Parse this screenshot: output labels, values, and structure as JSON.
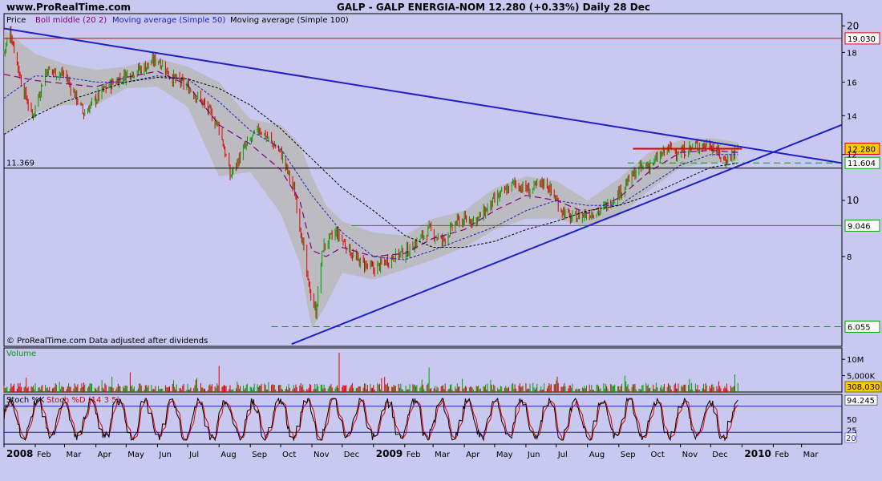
{
  "header": {
    "site": "www.ProRealTime.com",
    "title": "GALP - GALP ENERGIA-NOM   12.280 (+0.33%)   Daily  28 Dec"
  },
  "footer_note": "© ProRealTime.com  Data adjusted after dividends",
  "colors": {
    "background": "#c8c8f0",
    "panel_border": "#000000",
    "bollinger_band": "#b8b8b8",
    "ma50": "#2020c0",
    "ma100": "#000000",
    "boll_middle": "#800080",
    "trendline": "#2020c0",
    "resistance": "#e00000",
    "support": "#00a000",
    "up_candle": "#00a000",
    "down_candle": "#e00000"
  },
  "chart_data": [
    {
      "type": "line",
      "panel": "price",
      "legend": [
        "Price",
        "Boll middle (20 2)",
        "Moving average (Simple 50)",
        "Moving average (Simple 100)"
      ],
      "y_scale": "log",
      "ylim": [
        5.6,
        21
      ],
      "y_ticks": [
        "20",
        "18",
        "16",
        "14",
        "12",
        "10",
        "8"
      ],
      "x_ticks": [
        "2008",
        "Feb",
        "Mar",
        "Apr",
        "May",
        "Jun",
        "Jul",
        "Aug",
        "Sep",
        "Oct",
        "Nov",
        "Dec",
        "2009",
        "Feb",
        "Mar",
        "Apr",
        "May",
        "Jun",
        "Jul",
        "Aug",
        "Sep",
        "Oct",
        "Nov",
        "Dec",
        "2010",
        "Feb",
        "Mar"
      ],
      "x_ticks_bold": [
        "2008",
        "2009",
        "2010"
      ],
      "price_path": [
        {
          "x": "2008-01-01",
          "y": 18.0
        },
        {
          "x": "2008-01-07",
          "y": 19.6
        },
        {
          "x": "2008-01-18",
          "y": 16.0
        },
        {
          "x": "2008-01-29",
          "y": 13.9
        },
        {
          "x": "2008-02-12",
          "y": 16.8
        },
        {
          "x": "2008-03-01",
          "y": 16.5
        },
        {
          "x": "2008-03-20",
          "y": 14.1
        },
        {
          "x": "2008-04-10",
          "y": 15.6
        },
        {
          "x": "2008-05-01",
          "y": 16.5
        },
        {
          "x": "2008-05-20",
          "y": 17.0
        },
        {
          "x": "2008-06-01",
          "y": 17.6
        },
        {
          "x": "2008-06-15",
          "y": 16.3
        },
        {
          "x": "2008-07-01",
          "y": 15.7
        },
        {
          "x": "2008-07-15",
          "y": 14.8
        },
        {
          "x": "2008-08-01",
          "y": 13.4
        },
        {
          "x": "2008-08-12",
          "y": 11.0
        },
        {
          "x": "2008-08-25",
          "y": 12.2
        },
        {
          "x": "2008-09-10",
          "y": 13.3
        },
        {
          "x": "2008-09-20",
          "y": 12.7
        },
        {
          "x": "2008-10-01",
          "y": 12.1
        },
        {
          "x": "2008-10-15",
          "y": 10.3
        },
        {
          "x": "2008-10-28",
          "y": 7.2
        },
        {
          "x": "2008-11-05",
          "y": 6.4
        },
        {
          "x": "2008-11-12",
          "y": 8.3
        },
        {
          "x": "2008-11-25",
          "y": 8.8
        },
        {
          "x": "2008-12-15",
          "y": 7.9
        },
        {
          "x": "2009-01-01",
          "y": 7.6
        },
        {
          "x": "2009-01-20",
          "y": 8.0
        },
        {
          "x": "2009-02-05",
          "y": 8.2
        },
        {
          "x": "2009-02-25",
          "y": 8.9
        },
        {
          "x": "2009-03-10",
          "y": 8.5
        },
        {
          "x": "2009-03-25",
          "y": 9.2
        },
        {
          "x": "2009-04-15",
          "y": 9.3
        },
        {
          "x": "2009-05-01",
          "y": 10.0
        },
        {
          "x": "2009-05-20",
          "y": 10.7
        },
        {
          "x": "2009-06-05",
          "y": 10.4
        },
        {
          "x": "2009-06-20",
          "y": 10.8
        },
        {
          "x": "2009-07-05",
          "y": 9.7
        },
        {
          "x": "2009-07-15",
          "y": 9.3
        },
        {
          "x": "2009-08-01",
          "y": 9.5
        },
        {
          "x": "2009-08-15",
          "y": 9.6
        },
        {
          "x": "2009-09-01",
          "y": 10.3
        },
        {
          "x": "2009-09-20",
          "y": 11.3
        },
        {
          "x": "2009-10-05",
          "y": 11.6
        },
        {
          "x": "2009-10-20",
          "y": 12.3
        },
        {
          "x": "2009-11-01",
          "y": 12.1
        },
        {
          "x": "2009-11-15",
          "y": 12.4
        },
        {
          "x": "2009-12-01",
          "y": 12.5
        },
        {
          "x": "2009-12-15",
          "y": 11.7
        },
        {
          "x": "2009-12-28",
          "y": 12.28
        }
      ],
      "bollinger": [
        {
          "x": "2008-01-01",
          "upper": 19.7,
          "lower": 13.0
        },
        {
          "x": "2008-02-01",
          "upper": 17.9,
          "lower": 14.2
        },
        {
          "x": "2008-03-01",
          "upper": 17.2,
          "lower": 14.6
        },
        {
          "x": "2008-04-01",
          "upper": 16.8,
          "lower": 14.6
        },
        {
          "x": "2008-05-01",
          "upper": 17.0,
          "lower": 15.6
        },
        {
          "x": "2008-06-01",
          "upper": 17.6,
          "lower": 15.7
        },
        {
          "x": "2008-07-01",
          "upper": 17.0,
          "lower": 14.5
        },
        {
          "x": "2008-08-01",
          "upper": 16.0,
          "lower": 11.0
        },
        {
          "x": "2008-09-01",
          "upper": 13.8,
          "lower": 11.2
        },
        {
          "x": "2008-10-01",
          "upper": 13.5,
          "lower": 9.5
        },
        {
          "x": "2008-10-20",
          "upper": 12.5,
          "lower": 7.8
        },
        {
          "x": "2008-11-01",
          "upper": 11.0,
          "lower": 6.0
        },
        {
          "x": "2008-11-15",
          "upper": 9.8,
          "lower": 6.6
        },
        {
          "x": "2008-12-01",
          "upper": 9.2,
          "lower": 7.5
        },
        {
          "x": "2009-01-01",
          "upper": 8.8,
          "lower": 7.3
        },
        {
          "x": "2009-02-01",
          "upper": 8.7,
          "lower": 7.6
        },
        {
          "x": "2009-03-01",
          "upper": 9.3,
          "lower": 7.9
        },
        {
          "x": "2009-04-01",
          "upper": 9.6,
          "lower": 8.3
        },
        {
          "x": "2009-05-01",
          "upper": 10.5,
          "lower": 8.9
        },
        {
          "x": "2009-06-01",
          "upper": 11.0,
          "lower": 9.3
        },
        {
          "x": "2009-07-01",
          "upper": 10.8,
          "lower": 9.3
        },
        {
          "x": "2009-08-01",
          "upper": 10.0,
          "lower": 9.0
        },
        {
          "x": "2009-09-01",
          "upper": 10.9,
          "lower": 9.4
        },
        {
          "x": "2009-10-01",
          "upper": 12.1,
          "lower": 10.4
        },
        {
          "x": "2009-11-01",
          "upper": 12.7,
          "lower": 11.4
        },
        {
          "x": "2009-12-01",
          "upper": 12.8,
          "lower": 11.6
        },
        {
          "x": "2009-12-28",
          "upper": 12.6,
          "lower": 11.7
        }
      ],
      "boll_middle": [
        {
          "x": "2008-01-01",
          "y": 16.5
        },
        {
          "x": "2008-02-01",
          "y": 16.1
        },
        {
          "x": "2008-03-01",
          "y": 15.9
        },
        {
          "x": "2008-04-01",
          "y": 15.7
        },
        {
          "x": "2008-05-01",
          "y": 16.3
        },
        {
          "x": "2008-06-01",
          "y": 16.7
        },
        {
          "x": "2008-07-01",
          "y": 15.8
        },
        {
          "x": "2008-08-01",
          "y": 13.5
        },
        {
          "x": "2008-09-01",
          "y": 12.5
        },
        {
          "x": "2008-10-01",
          "y": 11.3
        },
        {
          "x": "2008-10-20",
          "y": 10.0
        },
        {
          "x": "2008-11-01",
          "y": 8.2
        },
        {
          "x": "2008-11-15",
          "y": 8.0
        },
        {
          "x": "2008-12-01",
          "y": 8.3
        },
        {
          "x": "2009-01-01",
          "y": 8.0
        },
        {
          "x": "2009-02-01",
          "y": 8.1
        },
        {
          "x": "2009-03-01",
          "y": 8.6
        },
        {
          "x": "2009-04-01",
          "y": 8.9
        },
        {
          "x": "2009-05-01",
          "y": 9.6
        },
        {
          "x": "2009-06-01",
          "y": 10.2
        },
        {
          "x": "2009-07-01",
          "y": 10.0
        },
        {
          "x": "2009-08-01",
          "y": 9.5
        },
        {
          "x": "2009-09-01",
          "y": 10.1
        },
        {
          "x": "2009-10-01",
          "y": 11.2
        },
        {
          "x": "2009-11-01",
          "y": 12.1
        },
        {
          "x": "2009-12-01",
          "y": 12.2
        },
        {
          "x": "2009-12-28",
          "y": 12.1
        }
      ],
      "ma50": [
        {
          "x": "2008-01-01",
          "y": 15.0
        },
        {
          "x": "2008-02-01",
          "y": 16.4
        },
        {
          "x": "2008-03-01",
          "y": 16.3
        },
        {
          "x": "2008-04-01",
          "y": 16.0
        },
        {
          "x": "2008-05-01",
          "y": 16.0
        },
        {
          "x": "2008-06-01",
          "y": 16.4
        },
        {
          "x": "2008-07-01",
          "y": 16.2
        },
        {
          "x": "2008-08-01",
          "y": 14.8
        },
        {
          "x": "2008-09-01",
          "y": 13.2
        },
        {
          "x": "2008-10-01",
          "y": 12.3
        },
        {
          "x": "2008-11-01",
          "y": 10.2
        },
        {
          "x": "2008-12-01",
          "y": 8.8
        },
        {
          "x": "2009-01-01",
          "y": 8.0
        },
        {
          "x": "2009-02-01",
          "y": 7.9
        },
        {
          "x": "2009-03-01",
          "y": 8.2
        },
        {
          "x": "2009-04-01",
          "y": 8.6
        },
        {
          "x": "2009-05-01",
          "y": 9.0
        },
        {
          "x": "2009-06-01",
          "y": 9.6
        },
        {
          "x": "2009-07-01",
          "y": 10.0
        },
        {
          "x": "2009-08-01",
          "y": 9.8
        },
        {
          "x": "2009-09-01",
          "y": 9.8
        },
        {
          "x": "2009-10-01",
          "y": 10.6
        },
        {
          "x": "2009-11-01",
          "y": 11.5
        },
        {
          "x": "2009-12-01",
          "y": 12.0
        },
        {
          "x": "2009-12-28",
          "y": 12.0
        }
      ],
      "ma100": [
        {
          "x": "2008-01-01",
          "y": 13.0
        },
        {
          "x": "2008-02-01",
          "y": 14.0
        },
        {
          "x": "2008-03-01",
          "y": 14.8
        },
        {
          "x": "2008-04-01",
          "y": 15.4
        },
        {
          "x": "2008-05-01",
          "y": 16.0
        },
        {
          "x": "2008-06-01",
          "y": 16.3
        },
        {
          "x": "2008-07-01",
          "y": 16.2
        },
        {
          "x": "2008-08-01",
          "y": 15.6
        },
        {
          "x": "2008-09-01",
          "y": 14.6
        },
        {
          "x": "2008-10-01",
          "y": 13.3
        },
        {
          "x": "2008-11-01",
          "y": 11.8
        },
        {
          "x": "2008-12-01",
          "y": 10.5
        },
        {
          "x": "2009-01-01",
          "y": 9.6
        },
        {
          "x": "2009-02-01",
          "y": 8.7
        },
        {
          "x": "2009-03-01",
          "y": 8.3
        },
        {
          "x": "2009-04-01",
          "y": 8.3
        },
        {
          "x": "2009-05-01",
          "y": 8.5
        },
        {
          "x": "2009-06-01",
          "y": 8.9
        },
        {
          "x": "2009-07-01",
          "y": 9.2
        },
        {
          "x": "2009-08-01",
          "y": 9.6
        },
        {
          "x": "2009-09-01",
          "y": 9.8
        },
        {
          "x": "2009-10-01",
          "y": 10.2
        },
        {
          "x": "2009-11-01",
          "y": 10.8
        },
        {
          "x": "2009-12-01",
          "y": 11.4
        },
        {
          "x": "2009-12-28",
          "y": 11.6
        }
      ],
      "trendlines": [
        {
          "name": "descending",
          "from": {
            "x": "2008-01-01",
            "y": 19.8
          },
          "to": {
            "x": "2010-04-10",
            "y": 11.6
          }
        },
        {
          "name": "ascending",
          "from": {
            "x": "2008-10-12",
            "y": 5.65
          },
          "to": {
            "x": "2010-04-10",
            "y": 13.5
          }
        }
      ],
      "levels": [
        {
          "value": 19.03,
          "label": "19.030",
          "color": "#e00000",
          "style": "solid",
          "from": "2008-01-01",
          "to": "2010-04-10",
          "boxed": true
        },
        {
          "value": 12.28,
          "label": "12.280",
          "color": "#e00000",
          "style": "solid-thick",
          "from": "2009-09-15",
          "to": "2010-01-01",
          "boxed": true,
          "fill": "#ffcc00"
        },
        {
          "value": 11.604,
          "label": "11.604",
          "color": "#00a000",
          "style": "dashed",
          "from": "2009-09-10",
          "to": "2010-04-10",
          "boxed": true
        },
        {
          "value": 11.369,
          "label": "11.369",
          "color": "#000000",
          "style": "solid",
          "from": "2008-01-01",
          "to": "2010-04-10",
          "label_side": "left"
        },
        {
          "value": 9.046,
          "label": "9.046",
          "color": "#00a000",
          "style": "solid",
          "from": "2008-12-10",
          "to": "2010-04-10",
          "boxed": true
        },
        {
          "value": 6.055,
          "label": "6.055",
          "color": "#00a000",
          "style": "dashed",
          "from": "2008-09-22",
          "to": "2010-04-10",
          "boxed": true
        }
      ]
    },
    {
      "type": "bar",
      "panel": "volume",
      "legend": [
        "Volume"
      ],
      "y_ticks": [
        "10M",
        "5,000K"
      ],
      "last_value": "308,030",
      "peaks": [
        {
          "x": "2008-11-28",
          "value": 12000000
        },
        {
          "x": "2008-08-01",
          "value": 8000000
        },
        {
          "x": "2009-02-25",
          "value": 7500000
        },
        {
          "x": "2008-01-20",
          "value": 7000000
        },
        {
          "x": "2008-05-05",
          "value": 6000000
        }
      ]
    },
    {
      "type": "line",
      "panel": "stochastic",
      "legend": [
        "Stoch %K",
        "Stoch %D (14 3 5)"
      ],
      "y_ticks": [
        "50",
        "25"
      ],
      "ylim": [
        0,
        100
      ],
      "upper_level": 80,
      "lower_level": 20,
      "last_values": {
        "k": "94.245",
        "d": "20"
      }
    }
  ]
}
